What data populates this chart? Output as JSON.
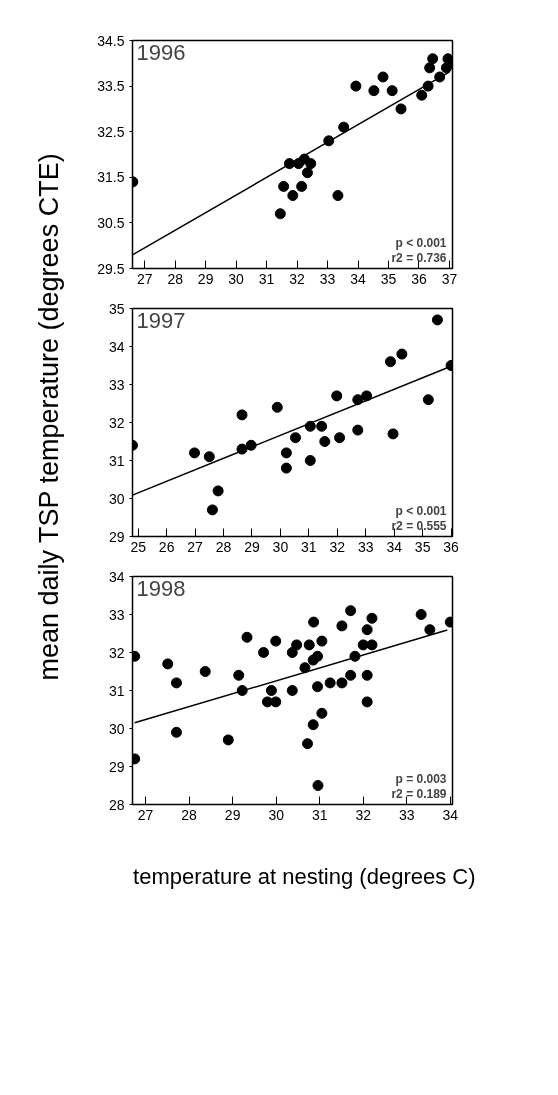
{
  "chart_data": [
    {
      "type": "scatter",
      "title": "1996",
      "ylabel": "mean daily TSP temperature (degrees CTE)",
      "grid": false,
      "xlim": [
        26.6,
        37.1
      ],
      "ylim": [
        29.5,
        34.5
      ],
      "xticks": [
        27,
        28,
        29,
        30,
        31,
        32,
        33,
        34,
        35,
        36,
        37
      ],
      "yticks": [
        29.5,
        30.5,
        31.5,
        32.5,
        33.5,
        34.5
      ],
      "annotations": [
        "p < 0.001",
        "r2 = 0.736"
      ],
      "series": [
        {
          "marker": "circle",
          "color": "#000000",
          "x": [
            26.61,
            31.45,
            31.56,
            31.75,
            31.86,
            32.05,
            32.15,
            32.24,
            32.34,
            32.45,
            33.04,
            33.34,
            33.53,
            33.93,
            34.52,
            34.82,
            35.12,
            35.41,
            36.09,
            36.3,
            36.68,
            36.35,
            36.45,
            36.95,
            37.05,
            36.9
          ],
          "values": [
            31.4,
            30.7,
            31.3,
            31.8,
            31.1,
            31.8,
            31.3,
            31.9,
            31.6,
            31.8,
            32.3,
            31.1,
            32.6,
            33.5,
            33.4,
            33.7,
            33.4,
            33.0,
            33.3,
            33.5,
            33.7,
            33.9,
            34.1,
            34.1,
            34.0,
            33.9
          ]
        },
        {
          "type": "line",
          "color": "#000000",
          "x": [
            26.6,
            37.0
          ],
          "values": [
            29.8,
            33.81
          ]
        }
      ]
    },
    {
      "type": "scatter",
      "title": "1997",
      "grid": false,
      "xlim": [
        24.8,
        36.05
      ],
      "ylim": [
        29,
        35
      ],
      "xticks": [
        25,
        26,
        27,
        28,
        29,
        30,
        31,
        32,
        33,
        34,
        35,
        36
      ],
      "yticks": [
        29,
        30,
        31,
        32,
        33,
        34,
        35
      ],
      "annotations": [
        "p < 0.001",
        "r2 = 0.555"
      ],
      "series": [
        {
          "marker": "circle",
          "color": "#000000",
          "x": [
            24.8,
            26.98,
            27.5,
            27.61,
            27.81,
            28.65,
            28.65,
            28.97,
            29.89,
            30.21,
            30.21,
            30.53,
            31.05,
            31.05,
            31.45,
            31.56,
            31.98,
            32.08,
            32.72,
            32.72,
            33.03,
            33.87,
            33.96,
            34.27,
            35.2,
            35.52,
            36.0
          ],
          "values": [
            31.4,
            31.2,
            31.1,
            29.7,
            30.2,
            32.2,
            31.3,
            31.4,
            32.4,
            31.2,
            30.8,
            31.6,
            31.9,
            31.0,
            31.9,
            31.5,
            32.7,
            31.6,
            32.6,
            31.8,
            32.7,
            33.6,
            31.7,
            33.8,
            32.6,
            34.7,
            33.5
          ]
        },
        {
          "type": "line",
          "color": "#000000",
          "x": [
            24.8,
            36.0
          ],
          "values": [
            30.09,
            33.48
          ]
        }
      ]
    },
    {
      "type": "scatter",
      "title": "1998",
      "xlabel": "temperature at nesting (degrees C)",
      "grid": false,
      "xlim": [
        26.7,
        34.05
      ],
      "ylim": [
        28,
        34
      ],
      "xticks": [
        27,
        28,
        29,
        30,
        31,
        32,
        33,
        34
      ],
      "yticks": [
        28,
        29,
        30,
        31,
        32,
        33,
        34
      ],
      "annotations": [
        "p = 0.003",
        "r2 = 0.189"
      ],
      "series": [
        {
          "marker": "circle",
          "color": "#000000",
          "x": [
            26.75,
            27.51,
            27.71,
            28.37,
            29.14,
            29.22,
            29.33,
            29.71,
            29.8,
            29.89,
            29.99,
            29.99,
            30.37,
            30.37,
            30.47,
            30.66,
            30.76,
            30.85,
            30.86,
            30.95,
            30.95,
            31.05,
            31.05,
            31.24,
            31.51,
            31.51,
            31.71,
            31.71,
            31.81,
            32.0,
            32.09,
            32.09,
            32.09,
            32.2,
            32.2,
            33.33,
            33.53,
            34.0,
            26.75,
            27.71,
            28.9,
            30.72,
            30.85,
            30.96
          ],
          "values": [
            31.9,
            31.7,
            31.2,
            31.5,
            31.4,
            31.0,
            32.4,
            32.0,
            30.7,
            31.0,
            30.7,
            32.3,
            32.0,
            31.0,
            32.2,
            31.6,
            32.2,
            31.8,
            32.8,
            31.9,
            31.1,
            32.3,
            30.4,
            31.2,
            31.2,
            32.7,
            33.1,
            31.4,
            31.9,
            32.2,
            32.6,
            31.4,
            30.7,
            32.9,
            32.2,
            33.0,
            32.6,
            32.8,
            29.2,
            29.9,
            29.7,
            29.6,
            30.1,
            28.5
          ]
        },
        {
          "type": "line",
          "color": "#000000",
          "x": [
            26.75,
            33.93
          ],
          "values": [
            30.15,
            32.59
          ]
        }
      ]
    }
  ]
}
